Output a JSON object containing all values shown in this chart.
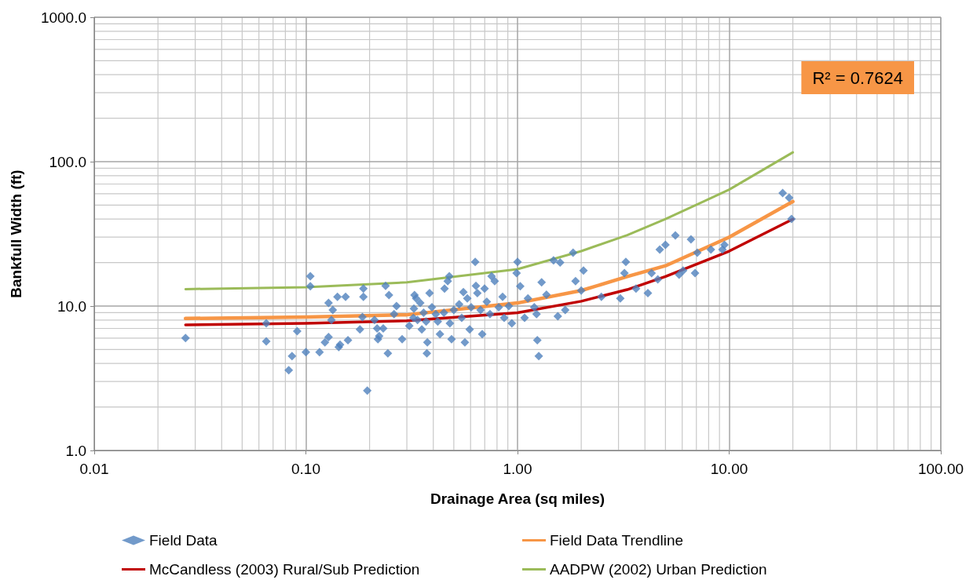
{
  "chart_data": {
    "type": "scatter",
    "xlabel": "Drainage Area (sq miles)",
    "ylabel": "Bankfull Width (ft)",
    "log": "xy",
    "grid": true,
    "legend": "bottom",
    "marker": "diamond",
    "xlim": [
      0.01,
      100
    ],
    "xticks": [
      {
        "value": 0.01,
        "label": "0.01"
      },
      {
        "value": 0.1,
        "label": "0.10"
      },
      {
        "value": 1,
        "label": "1.00"
      },
      {
        "value": 10,
        "label": "10.00"
      },
      {
        "value": 100,
        "label": "100.00"
      }
    ],
    "ylim": [
      1,
      1000
    ],
    "yticks": [
      {
        "value": 1,
        "label": "1.0"
      },
      {
        "value": 10,
        "label": "10.0"
      },
      {
        "value": 100,
        "label": "100.0"
      },
      {
        "value": 1000,
        "label": "1000.0"
      }
    ],
    "annotations": [
      "R² = 0.7624"
    ],
    "series": [
      {
        "name": "Field Data",
        "color": "#4f81bd",
        "x": [
          0.027,
          0.065,
          0.065,
          0.083,
          0.086,
          0.091,
          0.1,
          0.105,
          0.105,
          0.116,
          0.123,
          0.128,
          0.128,
          0.132,
          0.134,
          0.141,
          0.143,
          0.145,
          0.154,
          0.158,
          0.18,
          0.185,
          0.187,
          0.187,
          0.195,
          0.211,
          0.217,
          0.219,
          0.222,
          0.232,
          0.238,
          0.244,
          0.247,
          0.261,
          0.268,
          0.285,
          0.308,
          0.322,
          0.324,
          0.326,
          0.332,
          0.337,
          0.347,
          0.353,
          0.36,
          0.37,
          0.373,
          0.375,
          0.384,
          0.394,
          0.411,
          0.42,
          0.43,
          0.449,
          0.452,
          0.468,
          0.476,
          0.479,
          0.488,
          0.5,
          0.53,
          0.545,
          0.555,
          0.564,
          0.579,
          0.594,
          0.604,
          0.631,
          0.636,
          0.646,
          0.669,
          0.681,
          0.699,
          0.716,
          0.741,
          0.754,
          0.78,
          0.815,
          0.85,
          0.865,
          0.91,
          0.94,
          0.99,
          1.0,
          1.03,
          1.08,
          1.12,
          1.2,
          1.23,
          1.24,
          1.26,
          1.3,
          1.37,
          1.48,
          1.55,
          1.59,
          1.68,
          1.83,
          1.88,
          2.0,
          2.05,
          2.49,
          3.06,
          3.2,
          3.25,
          3.63,
          4.13,
          4.3,
          4.6,
          4.7,
          5.0,
          5.57,
          5.8,
          6.06,
          6.6,
          6.9,
          7.07,
          8.2,
          9.3,
          9.5,
          17.9,
          19.2,
          19.7
        ],
        "values": [
          6.0,
          7.6,
          5.7,
          3.6,
          4.5,
          6.7,
          4.8,
          16.1,
          13.7,
          4.8,
          5.6,
          10.5,
          6.1,
          8.0,
          9.4,
          11.6,
          5.2,
          5.4,
          11.6,
          5.8,
          6.9,
          8.4,
          13.2,
          11.6,
          2.6,
          8.0,
          7.0,
          5.9,
          6.2,
          7.0,
          13.8,
          4.7,
          11.9,
          8.8,
          10.0,
          5.9,
          7.3,
          8.3,
          9.6,
          11.9,
          11.3,
          8.0,
          10.5,
          6.9,
          9.0,
          7.8,
          4.7,
          5.6,
          12.3,
          9.8,
          8.8,
          7.8,
          6.4,
          9.0,
          13.2,
          14.9,
          16.1,
          7.6,
          5.9,
          9.4,
          10.3,
          8.3,
          12.5,
          5.6,
          11.3,
          6.9,
          9.8,
          20.2,
          13.8,
          12.3,
          9.4,
          6.4,
          13.2,
          10.7,
          8.8,
          16.1,
          14.9,
          9.8,
          11.6,
          8.3,
          10.0,
          7.6,
          16.9,
          20.2,
          13.7,
          8.3,
          11.3,
          9.8,
          8.8,
          5.8,
          4.5,
          14.6,
          12.0,
          20.7,
          8.5,
          20.0,
          9.4,
          23.4,
          14.9,
          12.8,
          17.6,
          11.6,
          11.3,
          16.9,
          20.2,
          13.2,
          12.3,
          16.9,
          15.3,
          24.6,
          26.5,
          30.8,
          16.5,
          17.6,
          29.0,
          16.9,
          23.4,
          24.6,
          24.6,
          26.5,
          60.6,
          56.2,
          40.1
        ]
      },
      {
        "name": "Field Data Trendline",
        "type": "line",
        "marker": "none",
        "color": "#f79646",
        "x": [
          0.027,
          0.1,
          0.3,
          1,
          2,
          3.3,
          5,
          10,
          20
        ],
        "values": [
          8.2,
          8.4,
          8.7,
          10.5,
          12.8,
          16,
          19,
          30,
          53
        ]
      },
      {
        "name": "McCandless (2003) Rural/Sub Prediction",
        "type": "line",
        "marker": "none",
        "color": "#c00000",
        "x": [
          0.027,
          0.1,
          0.3,
          1,
          2,
          3.3,
          5,
          10,
          20
        ],
        "values": [
          7.4,
          7.6,
          7.9,
          9.0,
          10.8,
          13,
          16,
          24,
          40
        ]
      },
      {
        "name": "AADPW (2002) Urban Prediction",
        "type": "line",
        "marker": "none",
        "color": "#9bbb59",
        "x": [
          0.027,
          0.1,
          0.3,
          1,
          2,
          3.3,
          5,
          10,
          20
        ],
        "values": [
          13.1,
          13.5,
          14.6,
          18,
          24,
          31,
          40,
          64,
          116
        ]
      }
    ]
  }
}
